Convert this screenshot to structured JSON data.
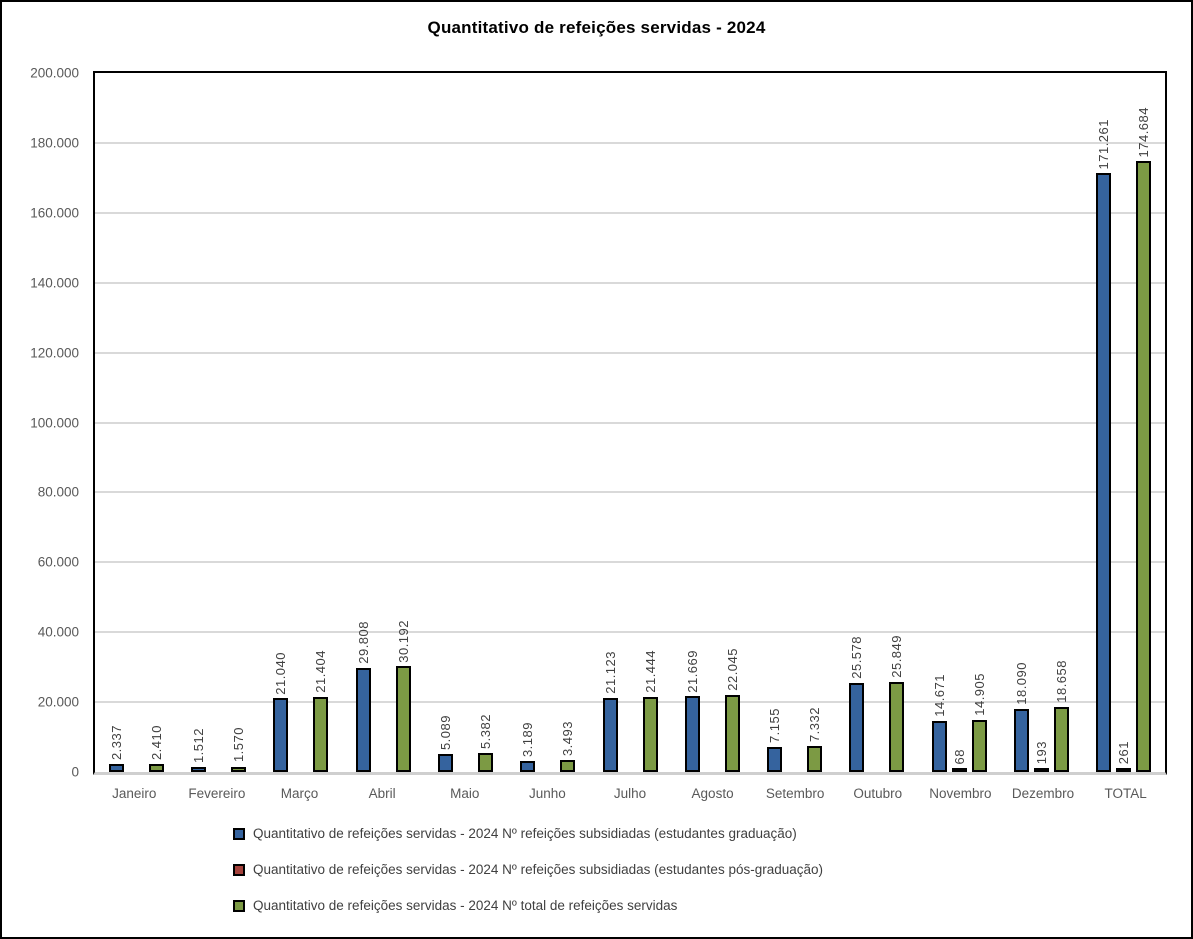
{
  "title": "Quantitativo de refeições servidas - 2024",
  "chart_data": {
    "type": "bar",
    "title": "Quantitativo de refeições servidas - 2024",
    "xlabel": "",
    "ylabel": "",
    "ylim": [
      0,
      200000
    ],
    "ytick_step": 20000,
    "yticks": [
      "0",
      "20.000",
      "40.000",
      "60.000",
      "80.000",
      "100.000",
      "120.000",
      "140.000",
      "160.000",
      "180.000",
      "200.000"
    ],
    "grid": true,
    "legend_position": "bottom",
    "categories": [
      "Janeiro",
      "Fevereiro",
      "Março",
      "Abril",
      "Maio",
      "Junho",
      "Julho",
      "Agosto",
      "Setembro",
      "Outubro",
      "Novembro",
      "Dezembro",
      "TOTAL"
    ],
    "series": [
      {
        "name": "Quantitativo de refeições servidas - 2024 Nº refeições subsidiadas (estudantes graduação)",
        "color": "#35639E",
        "values": [
          2337,
          1512,
          21040,
          29808,
          5089,
          3189,
          21123,
          21669,
          7155,
          25578,
          14671,
          18090,
          171261
        ],
        "labels": [
          "2.337",
          "1.512",
          "21.040",
          "29.808",
          "5.089",
          "3.189",
          "21.123",
          "21.669",
          "7.155",
          "25.578",
          "14.671",
          "18.090",
          "171.261"
        ]
      },
      {
        "name": "Quantitativo de refeições servidas - 2024 Nº refeições subsidiadas (estudantes pós-graduação)",
        "color": "#A5423C",
        "values": [
          null,
          null,
          null,
          null,
          null,
          null,
          null,
          null,
          null,
          null,
          68,
          193,
          261
        ],
        "labels": [
          "",
          "",
          "",
          "",
          "",
          "",
          "",
          "",
          "",
          "",
          "68",
          "193",
          "261"
        ]
      },
      {
        "name": "Quantitativo de refeições servidas - 2024 Nº total de refeições servidas",
        "color": "#7C9A44",
        "values": [
          2410,
          1570,
          21404,
          30192,
          5382,
          3493,
          21444,
          22045,
          7332,
          25849,
          14905,
          18658,
          174684
        ],
        "labels": [
          "2.410",
          "1.570",
          "21.404",
          "30.192",
          "5.382",
          "3.493",
          "21.444",
          "22.045",
          "7.332",
          "25.849",
          "14.905",
          "18.658",
          "174.684"
        ]
      }
    ],
    "colors": {
      "gridline": "#D9D9D9",
      "axis_labels": "#595959",
      "data_labels": "#404040",
      "bar_outline": "#000000",
      "baseline": "#CFCFCF"
    }
  }
}
